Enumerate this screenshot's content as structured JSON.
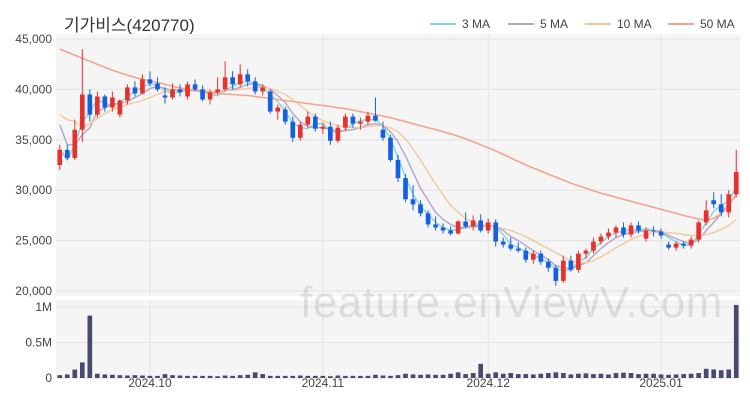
{
  "title": "기가비스(420770)",
  "legend": [
    {
      "label": "3 MA",
      "color": "#7fd6d6"
    },
    {
      "label": "5 MA",
      "color": "#b3a4cc"
    },
    {
      "label": "10 MA",
      "color": "#f2c99a"
    },
    {
      "label": "50 MA",
      "color": "#f3a58f"
    }
  ],
  "watermark": "feature.enViewV.com",
  "colors": {
    "up": "#e8312e",
    "down": "#1560e0",
    "volume": "#474a6e",
    "grid": "#e3e3e3",
    "plot_bg": "#f5f5f5"
  },
  "chart_data": [
    {
      "type": "candlestick",
      "title": "기가비스(420770)",
      "ylim": [
        19500,
        45500
      ],
      "yticks": [
        20000,
        25000,
        30000,
        35000,
        40000,
        45000
      ],
      "ytick_labels": [
        "20,000",
        "25,000",
        "30,000",
        "35,000",
        "40,000",
        "45,000"
      ],
      "xtick_labels": [
        {
          "label": "2024.10",
          "index": 12
        },
        {
          "label": "2024.11",
          "index": 35
        },
        {
          "label": "2024.12",
          "index": 57
        },
        {
          "label": "2025.01",
          "index": 80
        }
      ],
      "ohlc": [
        [
          32500,
          34500,
          32000,
          34000
        ],
        [
          34000,
          34500,
          33000,
          33200
        ],
        [
          33200,
          37000,
          33000,
          36000
        ],
        [
          36000,
          44000,
          34800,
          39500
        ],
        [
          39500,
          40000,
          36800,
          37500
        ],
        [
          37500,
          39800,
          37200,
          39300
        ],
        [
          39300,
          39500,
          37800,
          38200
        ],
        [
          38200,
          39800,
          37800,
          39200
        ],
        [
          37500,
          39000,
          37200,
          38900
        ],
        [
          38900,
          40500,
          38500,
          40200
        ],
        [
          40200,
          40800,
          39300,
          39600
        ],
        [
          39600,
          41500,
          39500,
          41000
        ],
        [
          41000,
          41800,
          40300,
          40600
        ],
        [
          40600,
          41200,
          39800,
          40000
        ],
        [
          39400,
          40200,
          38600,
          39200
        ],
        [
          39200,
          40600,
          39000,
          40000
        ],
        [
          40000,
          40500,
          39300,
          39700
        ],
        [
          39300,
          40800,
          39000,
          40500
        ],
        [
          40500,
          41000,
          39800,
          40000
        ],
        [
          40000,
          40400,
          38800,
          39000
        ],
        [
          39000,
          40000,
          38500,
          39700
        ],
        [
          39700,
          41200,
          39500,
          40000
        ],
        [
          40000,
          42800,
          39800,
          41200
        ],
        [
          41200,
          41800,
          40000,
          40500
        ],
        [
          40500,
          42500,
          40200,
          41500
        ],
        [
          41500,
          42000,
          40300,
          40800
        ],
        [
          40800,
          41200,
          39500,
          39800
        ],
        [
          39800,
          40500,
          39400,
          40200
        ],
        [
          39800,
          40000,
          37600,
          37800
        ],
        [
          37800,
          38500,
          37000,
          38200
        ],
        [
          38000,
          38300,
          36500,
          36800
        ],
        [
          36800,
          37300,
          34800,
          35200
        ],
        [
          35200,
          36800,
          34900,
          36500
        ],
        [
          36500,
          37800,
          36200,
          37300
        ],
        [
          37300,
          37600,
          35800,
          36100
        ],
        [
          36100,
          36700,
          35600,
          36300
        ],
        [
          36300,
          36800,
          34500,
          34900
        ],
        [
          34900,
          36500,
          34700,
          36200
        ],
        [
          36200,
          37600,
          35900,
          37300
        ],
        [
          37300,
          37600,
          36200,
          36600
        ],
        [
          36600,
          37200,
          36000,
          36800
        ],
        [
          36800,
          37800,
          36500,
          37400
        ],
        [
          37400,
          39200,
          36800,
          36900
        ],
        [
          36000,
          36800,
          34900,
          35200
        ],
        [
          35200,
          35500,
          32800,
          33000
        ],
        [
          33000,
          33500,
          30800,
          31200
        ],
        [
          31200,
          31600,
          28800,
          29100
        ],
        [
          29100,
          30500,
          28000,
          28600
        ],
        [
          28600,
          29000,
          27400,
          27700
        ],
        [
          27700,
          28000,
          26300,
          26600
        ],
        [
          26600,
          27400,
          26000,
          26300
        ],
        [
          26300,
          26700,
          25700,
          26000
        ],
        [
          26000,
          26400,
          25500,
          25700
        ],
        [
          25700,
          27000,
          25600,
          26900
        ],
        [
          26900,
          27800,
          26200,
          26400
        ],
        [
          26400,
          27500,
          26000,
          27000
        ],
        [
          27000,
          27600,
          25800,
          26000
        ],
        [
          26000,
          27200,
          25700,
          26800
        ],
        [
          26800,
          27100,
          24400,
          24900
        ],
        [
          24900,
          25300,
          24300,
          24600
        ],
        [
          24600,
          25300,
          24000,
          24200
        ],
        [
          24200,
          24800,
          23800,
          24000
        ],
        [
          24000,
          24300,
          22800,
          23100
        ],
        [
          23100,
          24000,
          22700,
          23700
        ],
        [
          23700,
          24000,
          22600,
          22900
        ],
        [
          22900,
          23200,
          21900,
          22300
        ],
        [
          22300,
          22600,
          20500,
          21000
        ],
        [
          21000,
          23500,
          20800,
          23000
        ],
        [
          23000,
          23500,
          21900,
          22100
        ],
        [
          22100,
          24000,
          21800,
          23700
        ],
        [
          23700,
          24200,
          23200,
          24000
        ],
        [
          24000,
          25300,
          23700,
          24900
        ],
        [
          24900,
          25700,
          24600,
          25400
        ],
        [
          25400,
          26200,
          25100,
          25800
        ],
        [
          25800,
          26500,
          25300,
          26300
        ],
        [
          26300,
          26800,
          25300,
          25600
        ],
        [
          25600,
          26800,
          25300,
          26500
        ],
        [
          26500,
          26900,
          25700,
          26000
        ],
        [
          25200,
          26300,
          24900,
          26000
        ],
        [
          26000,
          26400,
          25400,
          25900
        ],
        [
          25900,
          26200,
          25200,
          25500
        ],
        [
          24600,
          24900,
          24100,
          24300
        ],
        [
          24300,
          24900,
          24000,
          24700
        ],
        [
          24700,
          24900,
          24200,
          24500
        ],
        [
          24500,
          25400,
          24200,
          25100
        ],
        [
          25100,
          27000,
          24800,
          26800
        ],
        [
          26800,
          29000,
          26500,
          28000
        ],
        [
          29000,
          29800,
          28200,
          28600
        ],
        [
          28600,
          29600,
          27400,
          27800
        ],
        [
          27800,
          30000,
          27300,
          29600
        ],
        [
          29600,
          34000,
          29300,
          31800
        ]
      ],
      "ma": [
        {
          "name": "3 MA",
          "values": [
            34100,
            33000,
            34500,
            36800,
            37700,
            39000,
            38600,
            38400,
            38700,
            39300,
            39800,
            40200,
            40600,
            40400,
            39900,
            39600,
            39800,
            39900,
            40000,
            39800,
            39500,
            39400,
            39900,
            40300,
            40700,
            40800,
            40500,
            40200,
            39500,
            38800,
            37800,
            36700,
            36200,
            36100,
            36600,
            36600,
            35900,
            35700,
            36000,
            36600,
            36900,
            37000,
            37000,
            36400,
            35100,
            33200,
            31300,
            29600,
            28400,
            27600,
            26800,
            26300,
            26000,
            26100,
            26300,
            26600,
            26500,
            26500,
            26300,
            25600,
            24600,
            24300,
            23900,
            23600,
            23200,
            22800,
            22200,
            22000,
            22100,
            22900,
            23300,
            24200,
            24800,
            25400,
            25800,
            25900,
            26100,
            26000,
            26200,
            26000,
            25800,
            25300,
            24900,
            24500,
            24600,
            25600,
            26800,
            27900,
            28500,
            28900,
            30300
          ]
        },
        {
          "name": "5 MA",
          "values": [
            36500,
            34500,
            34500,
            35500,
            36200,
            37800,
            38200,
            38500,
            38600,
            38800,
            39200,
            39600,
            40100,
            40300,
            40100,
            39900,
            39900,
            39900,
            39900,
            39700,
            39700,
            39800,
            39900,
            40000,
            40200,
            40500,
            40600,
            40400,
            40000,
            39400,
            38700,
            37600,
            36800,
            36300,
            36200,
            36200,
            36000,
            35900,
            35900,
            36000,
            36200,
            36500,
            36600,
            36400,
            35800,
            34800,
            33400,
            31800,
            30200,
            29000,
            27800,
            27100,
            26600,
            26300,
            26300,
            26400,
            26400,
            26500,
            26400,
            26000,
            25400,
            25000,
            24500,
            24000,
            23600,
            23100,
            22500,
            22300,
            22200,
            22500,
            22800,
            23500,
            24200,
            24800,
            25300,
            25600,
            25800,
            25900,
            26000,
            26000,
            25900,
            25500,
            25200,
            24900,
            24700,
            25100,
            26000,
            26800,
            27700,
            28500,
            29600
          ]
        },
        {
          "name": "10 MA",
          "values": [
            37500,
            37000,
            36800,
            36200,
            36600,
            37100,
            37600,
            38000,
            38200,
            38500,
            38700,
            38900,
            39200,
            39500,
            39800,
            40000,
            40000,
            40000,
            40000,
            39900,
            39800,
            39800,
            39900,
            39900,
            40000,
            40100,
            40200,
            40200,
            40100,
            39800,
            39500,
            39000,
            38400,
            37800,
            37300,
            36900,
            36600,
            36400,
            36300,
            36200,
            36200,
            36300,
            36400,
            36400,
            36200,
            35800,
            35100,
            34100,
            33000,
            31800,
            30600,
            29500,
            28500,
            27800,
            27200,
            26800,
            26600,
            26500,
            26400,
            26200,
            26000,
            25700,
            25400,
            25000,
            24600,
            24200,
            23800,
            23400,
            23000,
            22800,
            22800,
            23000,
            23400,
            23800,
            24300,
            24700,
            25100,
            25400,
            25600,
            25800,
            25800,
            25800,
            25700,
            25600,
            25500,
            25500,
            25600,
            25800,
            26100,
            26500,
            27100
          ]
        },
        {
          "name": "50 MA",
          "values": [
            44000,
            43700,
            43400,
            43100,
            42800,
            42500,
            42200,
            41900,
            41650,
            41400,
            41200,
            41000,
            40850,
            40700,
            40500,
            40300,
            40150,
            40000,
            39900,
            39800,
            39700,
            39600,
            39550,
            39500,
            39450,
            39400,
            39300,
            39200,
            39100,
            39000,
            38900,
            38800,
            38700,
            38600,
            38500,
            38400,
            38300,
            38200,
            38100,
            37950,
            37800,
            37650,
            37500,
            37350,
            37200,
            37000,
            36800,
            36600,
            36400,
            36200,
            36000,
            35800,
            35600,
            35350,
            35100,
            34800,
            34500,
            34200,
            33900,
            33550,
            33200,
            32850,
            32500,
            32200,
            31900,
            31600,
            31300,
            31000,
            30700,
            30450,
            30200,
            29950,
            29700,
            29500,
            29300,
            29100,
            28900,
            28700,
            28500,
            28300,
            28100,
            27900,
            27700,
            27500,
            27300,
            27150,
            27000,
            27200,
            27700,
            28600,
            29500
          ]
        }
      ]
    },
    {
      "type": "bar",
      "title": "",
      "ylim": [
        0,
        1100000
      ],
      "yticks": [
        0,
        500000,
        1000000
      ],
      "ytick_labels": [
        "0",
        "0.5M",
        "1M"
      ],
      "values": [
        40000,
        50000,
        120000,
        220000,
        880000,
        60000,
        50000,
        45000,
        40000,
        35000,
        40000,
        35000,
        30000,
        30000,
        55000,
        40000,
        35000,
        30000,
        30000,
        30000,
        30000,
        25000,
        35000,
        30000,
        40000,
        45000,
        80000,
        55000,
        30000,
        30000,
        30000,
        30000,
        35000,
        30000,
        30000,
        30000,
        25000,
        35000,
        30000,
        30000,
        30000,
        30000,
        45000,
        35000,
        30000,
        40000,
        60000,
        50000,
        45000,
        50000,
        45000,
        45000,
        60000,
        80000,
        55000,
        70000,
        200000,
        60000,
        80000,
        60000,
        70000,
        55000,
        55000,
        50000,
        60000,
        70000,
        80000,
        70000,
        50000,
        60000,
        65000,
        55000,
        60000,
        50000,
        70000,
        75000,
        70000,
        55000,
        60000,
        60000,
        50000,
        45000,
        50000,
        55000,
        60000,
        70000,
        130000,
        120000,
        110000,
        120000,
        1030000
      ]
    }
  ]
}
